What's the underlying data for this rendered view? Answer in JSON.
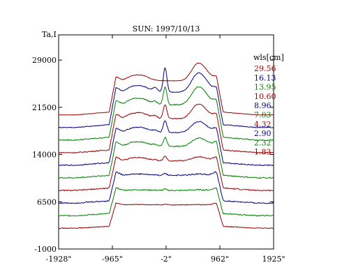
{
  "chart_data": {
    "type": "line",
    "title": "SUN: 1997/10/13",
    "ylabel": "Ta,I",
    "xlabel": "",
    "xlim": [
      -1928,
      1925
    ],
    "ylim": [
      -1000,
      33000
    ],
    "x_ticks": [
      -1928,
      -965,
      -2,
      962,
      1925
    ],
    "x_tick_labels": [
      "-1928\"",
      "-965\"",
      "-2\"",
      "962\"",
      "1925\""
    ],
    "y_ticks": [
      -1000,
      6500,
      14000,
      21500,
      29000
    ],
    "y_tick_labels": [
      "-1000",
      "6500",
      "14000",
      "21500",
      "29000"
    ],
    "legend": {
      "title": "wls[cm]",
      "placement": "top-right"
    },
    "colors": {
      "red": "#990000",
      "blue": "#000080",
      "green": "#008000"
    },
    "series": [
      {
        "name": "29.56",
        "color": "#990000",
        "offset": 20300,
        "quiet": 3500,
        "disk": 5400,
        "bright1": 900,
        "bright2": 2600,
        "peak": 0,
        "limb": 600,
        "noise": 40
      },
      {
        "name": "16.13",
        "color": "#000080",
        "offset": 18300,
        "quiet": 3500,
        "disk": 5600,
        "bright1": 1000,
        "bright2": 2800,
        "peak": 3900,
        "limb": 700,
        "noise": 60
      },
      {
        "name": "13.95",
        "color": "#008000",
        "offset": 16300,
        "quiet": 3500,
        "disk": 5600,
        "bright1": 1000,
        "bright2": 2600,
        "peak": 2800,
        "limb": 700,
        "noise": 80
      },
      {
        "name": "10.60",
        "color": "#990000",
        "offset": 14300,
        "quiet": 3500,
        "disk": 5400,
        "bright1": 900,
        "bright2": 2100,
        "peak": 2200,
        "limb": 700,
        "noise": 80
      },
      {
        "name": "8.96",
        "color": "#000080",
        "offset": 12300,
        "quiet": 3500,
        "disk": 5200,
        "bright1": 800,
        "bright2": 1600,
        "peak": 1900,
        "limb": 700,
        "noise": 80
      },
      {
        "name": "7.03",
        "color": "#008000",
        "offset": 10300,
        "quiet": 3500,
        "disk": 5000,
        "bright1": 700,
        "bright2": 1200,
        "peak": 1400,
        "limb": 700,
        "noise": 90
      },
      {
        "name": "4.32",
        "color": "#990000",
        "offset": 8300,
        "quiet": 3500,
        "disk": 4700,
        "bright1": 500,
        "bright2": 600,
        "peak": 700,
        "limb": 600,
        "noise": 90
      },
      {
        "name": "2.90",
        "color": "#000080",
        "offset": 6300,
        "quiet": 3500,
        "disk": 4400,
        "bright1": 200,
        "bright2": 200,
        "peak": 300,
        "limb": 500,
        "noise": 90
      },
      {
        "name": "2.32",
        "color": "#008000",
        "offset": 4300,
        "quiet": 3500,
        "disk": 4000,
        "bright1": 100,
        "bright2": 100,
        "peak": 200,
        "limb": 400,
        "noise": 90
      },
      {
        "name": "1.83",
        "color": "#990000",
        "offset": 2300,
        "quiet": 3500,
        "disk": 3700,
        "bright1": 50,
        "bright2": 50,
        "peak": 100,
        "limb": 300,
        "noise": 60
      }
    ]
  }
}
